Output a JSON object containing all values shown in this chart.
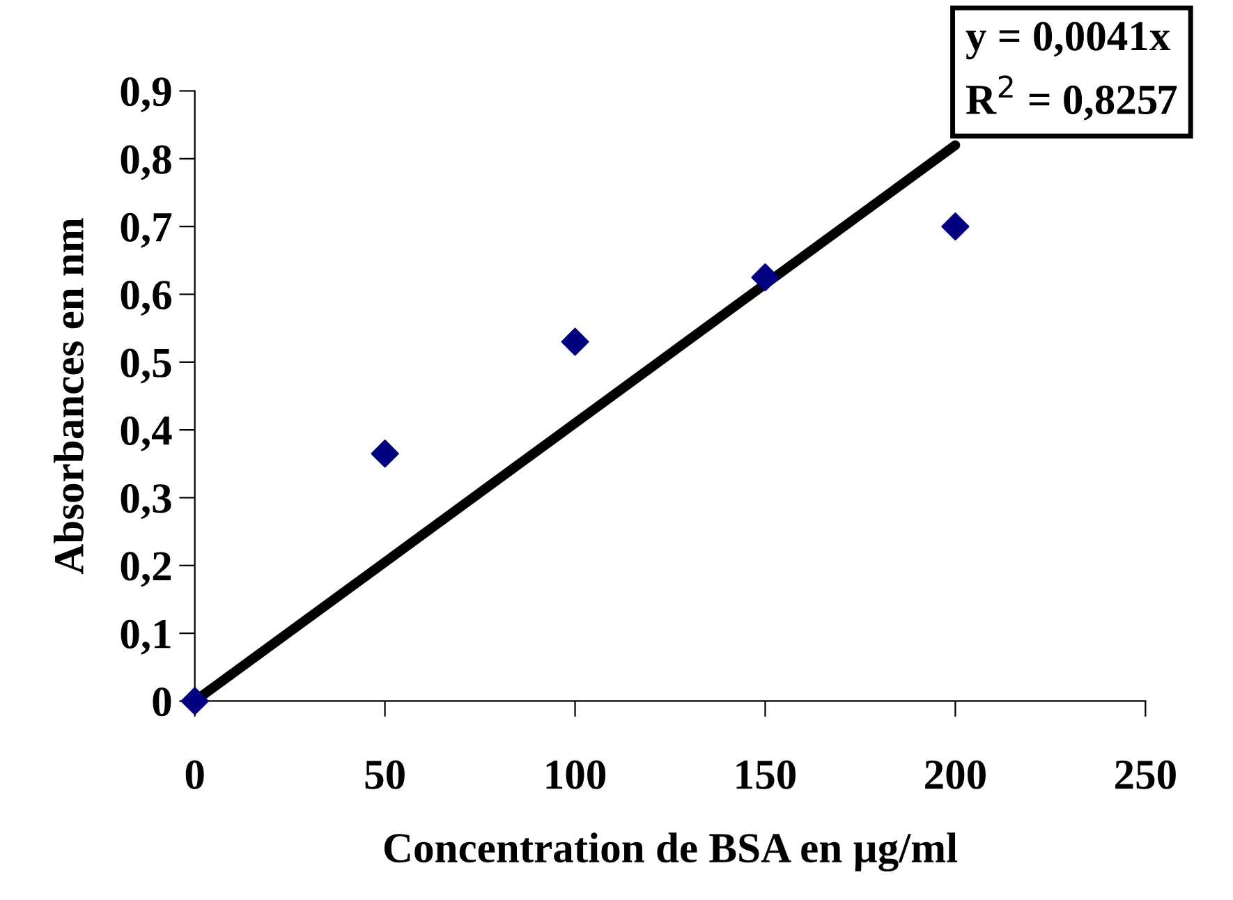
{
  "chart_data": {
    "type": "scatter",
    "xlabel": "Concentration de BSA en µg/ml",
    "ylabel": "Absorbances en nm",
    "x": [
      0,
      50,
      100,
      150,
      200
    ],
    "series": [
      {
        "color": "#000080",
        "values": [
          0,
          0.365,
          0.53,
          0.625,
          0.7
        ],
        "marker": "diamond"
      },
      {
        "type": "line",
        "color": "#000000",
        "x": [
          0,
          200
        ],
        "values": [
          0,
          0.82
        ],
        "marker": "none",
        "line_style": "solid"
      }
    ],
    "xlim": [
      0,
      250
    ],
    "xticks": [
      0,
      50,
      100,
      150,
      200,
      250
    ],
    "ylim": [
      0,
      0.9
    ],
    "yticks": [
      {
        "value": 0,
        "label": "0"
      },
      {
        "value": 0.1,
        "label": "0,1"
      },
      {
        "value": 0.2,
        "label": "0,2"
      },
      {
        "value": 0.3,
        "label": "0,3"
      },
      {
        "value": 0.4,
        "label": "0,4"
      },
      {
        "value": 0.5,
        "label": "0,5"
      },
      {
        "value": 0.6,
        "label": "0,6"
      },
      {
        "value": 0.7,
        "label": "0,7"
      },
      {
        "value": 0.8,
        "label": "0,8"
      },
      {
        "value": 0.9,
        "label": "0,9"
      }
    ],
    "grid": false,
    "legend": false,
    "annotations": [
      "y = 0,0041x",
      "R$^{2}$ = 0,8257"
    ]
  }
}
